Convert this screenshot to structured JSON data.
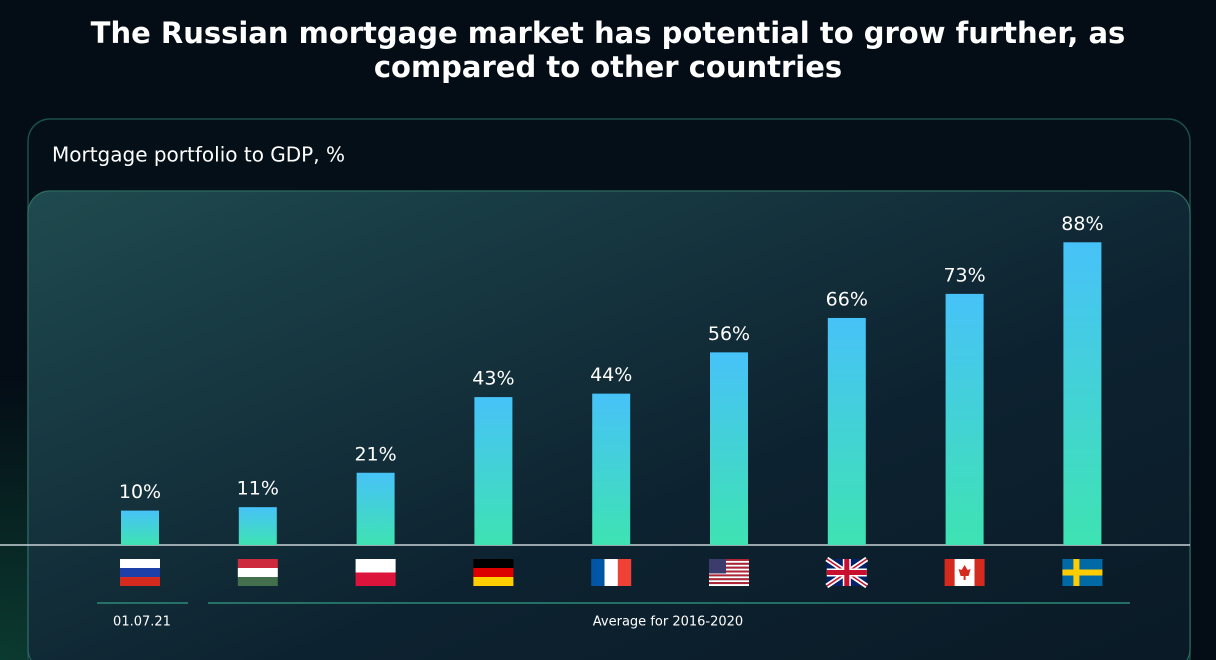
{
  "chart_data": {
    "type": "bar",
    "title": "The Russian mortgage market has potential to grow further, as compared to other countries",
    "subtitle": "Mortgage portfolio to GDP, %",
    "categories": [
      null,
      null,
      null,
      null,
      null,
      null,
      null,
      null,
      null
    ],
    "values": [
      10,
      11,
      21,
      43,
      44,
      56,
      66,
      73,
      88
    ],
    "value_labels": [
      "10%",
      "11%",
      "21%",
      "43%",
      "44%",
      "56%",
      "66%",
      "73%",
      "88%"
    ],
    "colors": [
      "#47c2f8",
      "#3ee3b2"
    ],
    "annotations": [
      "01.07.21",
      "Average for 2016-2020"
    ]
  }
}
